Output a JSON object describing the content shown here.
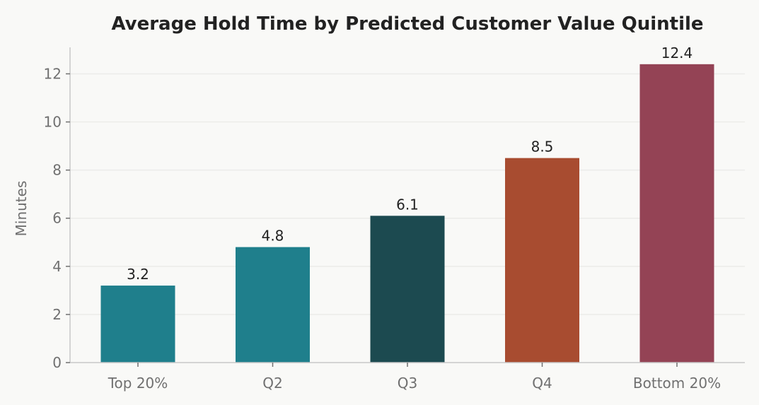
{
  "chart_data": {
    "type": "bar",
    "title": "Average Hold Time by Predicted Customer Value Quintile",
    "xlabel": "",
    "ylabel": "Minutes",
    "categories": [
      "Top 20%",
      "Q2",
      "Q3",
      "Q4",
      "Bottom 20%"
    ],
    "values": [
      3.2,
      4.8,
      6.1,
      8.5,
      12.4
    ],
    "data_labels": [
      "3.2",
      "4.8",
      "6.1",
      "8.5",
      "12.4"
    ],
    "bar_colors": [
      "#1f7f8c",
      "#1f7f8c",
      "#1c4a50",
      "#a84c30",
      "#944355"
    ],
    "ylim": [
      0,
      13.1
    ],
    "yticks": [
      0,
      2,
      4,
      6,
      8,
      10,
      12
    ],
    "ytick_labels": [
      "0",
      "2",
      "4",
      "6",
      "8",
      "10",
      "12"
    ],
    "grid": true,
    "legend": "none"
  }
}
